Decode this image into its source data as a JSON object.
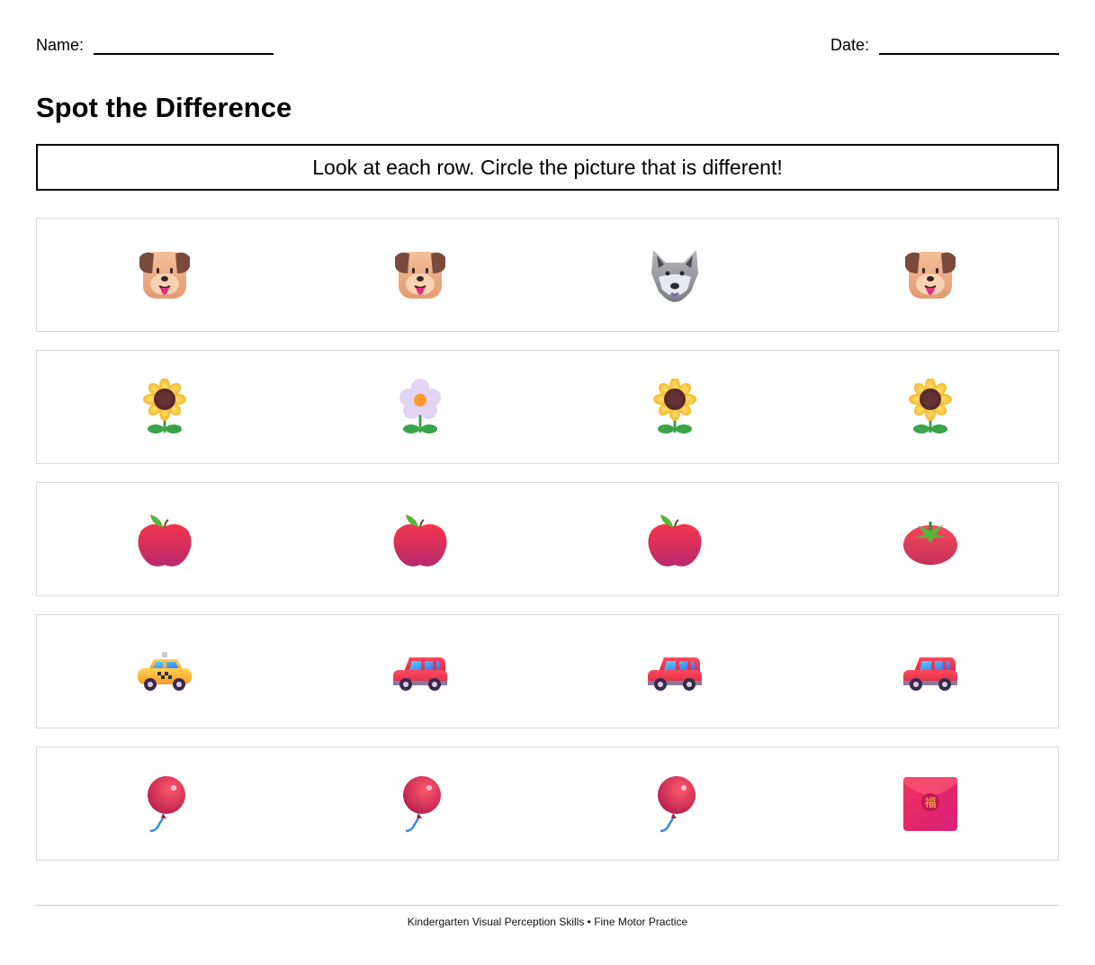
{
  "header": {
    "name_label": "Name:",
    "date_label": "Date:"
  },
  "title": "Spot the Difference",
  "instructions": "Look at each row. Circle the picture that is different!",
  "rows": [
    {
      "items": [
        "dog-face",
        "dog-face",
        "wolf-face",
        "dog-face"
      ],
      "different_index": 2
    },
    {
      "items": [
        "sunflower",
        "blossom",
        "sunflower",
        "sunflower"
      ],
      "different_index": 1
    },
    {
      "items": [
        "red-apple",
        "red-apple",
        "red-apple",
        "tomato"
      ],
      "different_index": 3
    },
    {
      "items": [
        "taxi",
        "car",
        "car",
        "car"
      ],
      "different_index": 0
    },
    {
      "items": [
        "balloon",
        "balloon",
        "balloon",
        "red-envelope"
      ],
      "different_index": 3
    }
  ],
  "footer": "Kindergarten Visual Perception Skills • Fine Motor Practice"
}
